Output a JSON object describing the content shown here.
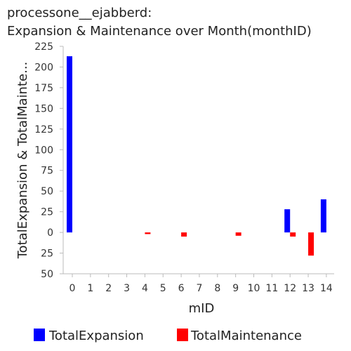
{
  "chart_data": {
    "type": "bar",
    "title_lines": [
      "processone__ejabberd:",
      "Expansion & Maintenance over Month(monthID)"
    ],
    "xlabel": "mID",
    "ylabel": "TotalExpansion & TotalMainte...",
    "categories": [
      "0",
      "1",
      "2",
      "3",
      "4",
      "5",
      "6",
      "7",
      "8",
      "9",
      "10",
      "11",
      "12",
      "13",
      "14"
    ],
    "ylim": [
      -50,
      225
    ],
    "yticks": [
      225,
      200,
      175,
      150,
      125,
      100,
      75,
      50,
      25,
      0,
      -25,
      -50
    ],
    "ytick_labels": [
      "225",
      "200",
      "175",
      "150",
      "125",
      "100",
      "75",
      "50",
      "25",
      "0",
      "25",
      "50"
    ],
    "legend_position": "bottom",
    "grid": false,
    "series": [
      {
        "name": "TotalExpansion",
        "color": "#0000ff",
        "values": [
          213,
          0,
          0,
          0,
          0,
          0,
          0,
          0,
          0,
          0,
          0,
          0,
          28,
          0,
          40
        ]
      },
      {
        "name": "TotalMaintenance",
        "color": "#ff0000",
        "values": [
          0,
          0,
          0,
          0,
          -2,
          0,
          -5,
          0,
          0,
          -4,
          0,
          0,
          -5,
          -28,
          0
        ]
      }
    ]
  }
}
